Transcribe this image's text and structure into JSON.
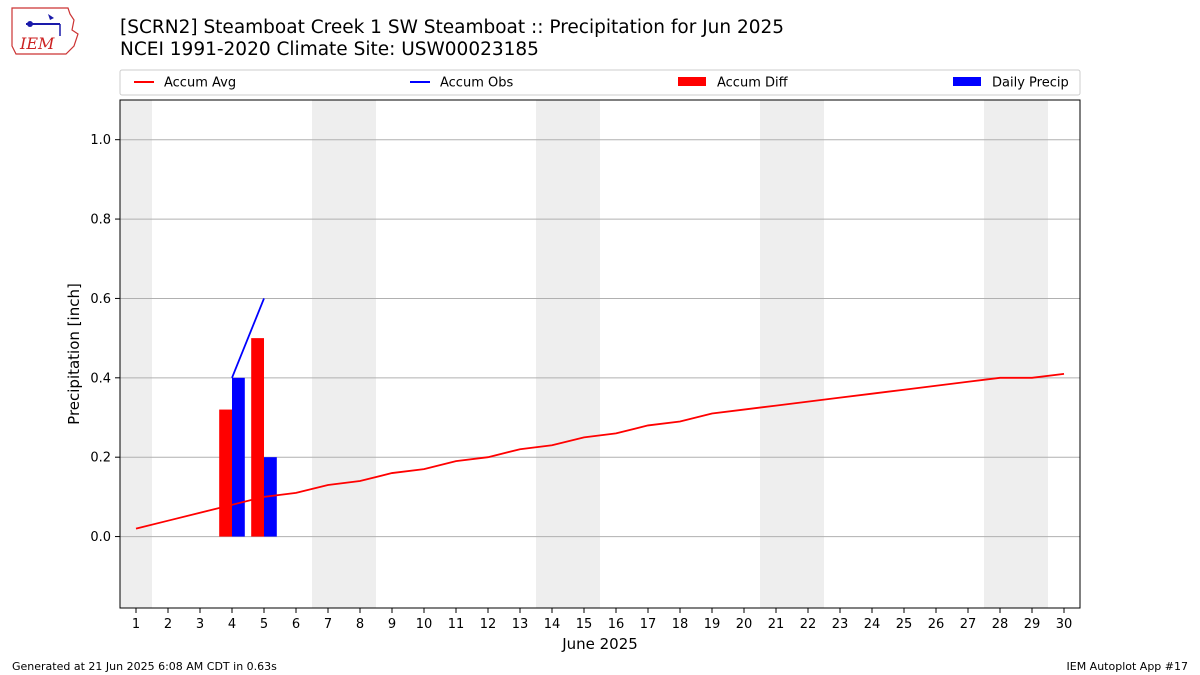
{
  "header": {
    "title_line1": "[SCRN2] Steamboat Creek 1 SW Steamboat :: Precipitation for Jun 2025",
    "title_line2": "NCEI 1991-2020 Climate Site: USW00023185",
    "logo_text": "IEM"
  },
  "footer": {
    "left": "Generated at 21 Jun 2025 6:08 AM CDT in 0.63s",
    "right": "IEM Autoplot App #17"
  },
  "colors": {
    "avg": "#ff0000",
    "obs": "#0000ff",
    "diff": "#ff0000",
    "daily": "#0000ff",
    "weekend_band": "#eeeeee",
    "grid": "#b0b0b0"
  },
  "chart_data": {
    "type": "bar",
    "xlabel": "June 2025",
    "ylabel": "Precipitation [inch]",
    "xlim": [
      0.5,
      30.5
    ],
    "ylim": [
      -0.18,
      1.1
    ],
    "yticks": [
      0.0,
      0.2,
      0.4,
      0.6,
      0.8,
      1.0
    ],
    "ytick_labels": [
      "0.0",
      "0.2",
      "0.4",
      "0.6",
      "0.8",
      "1.0"
    ],
    "x": [
      1,
      2,
      3,
      4,
      5,
      6,
      7,
      8,
      9,
      10,
      11,
      12,
      13,
      14,
      15,
      16,
      17,
      18,
      19,
      20,
      21,
      22,
      23,
      24,
      25,
      26,
      27,
      28,
      29,
      30
    ],
    "grid": "horizontal",
    "legend_position": "top",
    "weekend_bands": [
      [
        0.5,
        1.5
      ],
      [
        6.5,
        8.5
      ],
      [
        13.5,
        15.5
      ],
      [
        20.5,
        22.5
      ],
      [
        27.5,
        29.5
      ]
    ],
    "series": [
      {
        "name": "Accum Avg",
        "kind": "line",
        "x": [
          1,
          2,
          3,
          4,
          5,
          6,
          7,
          8,
          9,
          10,
          11,
          12,
          13,
          14,
          15,
          16,
          17,
          18,
          19,
          20,
          21,
          22,
          23,
          24,
          25,
          26,
          27,
          28,
          29,
          30
        ],
        "values": [
          0.02,
          0.04,
          0.06,
          0.08,
          0.1,
          0.11,
          0.13,
          0.14,
          0.16,
          0.17,
          0.19,
          0.2,
          0.22,
          0.23,
          0.25,
          0.26,
          0.28,
          0.29,
          0.31,
          0.32,
          0.33,
          0.34,
          0.35,
          0.36,
          0.37,
          0.38,
          0.39,
          0.4,
          0.4,
          0.41
        ]
      },
      {
        "name": "Accum Obs",
        "kind": "line",
        "x": [
          4,
          5
        ],
        "values": [
          0.4,
          0.6
        ]
      },
      {
        "name": "Accum Diff",
        "kind": "bar",
        "x": [
          4,
          5
        ],
        "values": [
          0.32,
          0.5
        ]
      },
      {
        "name": "Daily Precip",
        "kind": "bar",
        "x": [
          4,
          5
        ],
        "values": [
          0.4,
          0.2
        ]
      }
    ]
  }
}
